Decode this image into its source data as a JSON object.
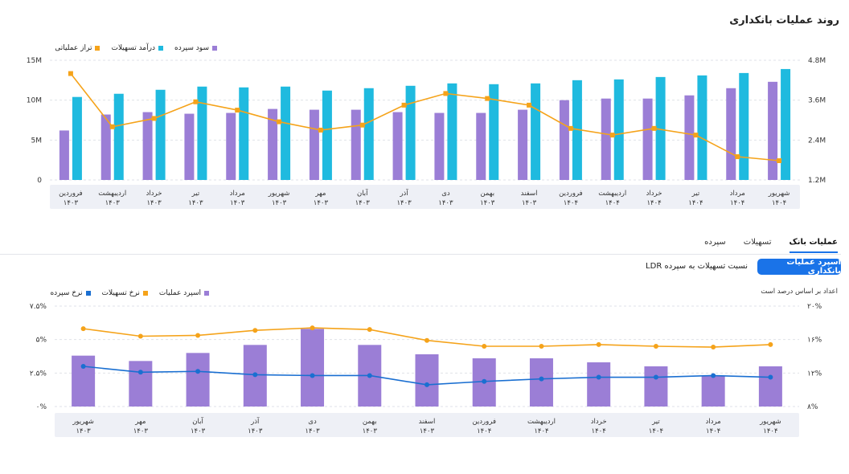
{
  "page": {
    "title": "روند عملیات بانکداری",
    "tabs": [
      "عملیات بانک",
      "تسهیلات",
      "سپرده"
    ],
    "spread_button": "اسپرد عملیات بانکداری",
    "ratio_link": "نسبت تسهیلات به سپرده LDR",
    "note": "اعداد بر اساس درصد است"
  },
  "chart_data": [
    {
      "type": "bar",
      "legend": [
        {
          "name": "سود سپرده",
          "color": "#9b7ed6"
        },
        {
          "name": "درآمد تسهیلات",
          "color": "#1fbadf"
        },
        {
          "name": "تراز عملیاتی",
          "color": "#f5a31a"
        }
      ],
      "categories": [
        [
          "فروردین",
          "۱۴۰۳"
        ],
        [
          "اردیبهشت",
          "۱۴۰۳"
        ],
        [
          "خرداد",
          "۱۴۰۳"
        ],
        [
          "تیر",
          "۱۴۰۳"
        ],
        [
          "مرداد",
          "۱۴۰۳"
        ],
        [
          "شهریور",
          "۱۴۰۳"
        ],
        [
          "مهر",
          "۱۴۰۳"
        ],
        [
          "آبان",
          "۱۴۰۳"
        ],
        [
          "آذر",
          "۱۴۰۳"
        ],
        [
          "دی",
          "۱۴۰۳"
        ],
        [
          "بهمن",
          "۱۴۰۳"
        ],
        [
          "اسفند",
          "۱۴۰۳"
        ],
        [
          "فروردین",
          "۱۴۰۴"
        ],
        [
          "اردیبهشت",
          "۱۴۰۴"
        ],
        [
          "خرداد",
          "۱۴۰۴"
        ],
        [
          "تیر",
          "۱۴۰۴"
        ],
        [
          "مرداد",
          "۱۴۰۴"
        ],
        [
          "شهریور",
          "۱۴۰۴"
        ]
      ],
      "left_axis": {
        "ticks": [
          "15M",
          "10M",
          "5M",
          "0"
        ],
        "values": [
          15,
          10,
          5,
          0
        ],
        "ylim": [
          0,
          15
        ]
      },
      "right_axis": {
        "ticks": [
          "4.8M",
          "3.6M",
          "2.4M",
          "1.2M"
        ],
        "values": [
          4.8,
          3.6,
          2.4,
          1.2
        ],
        "ylim": [
          1.2,
          4.8
        ]
      },
      "series": [
        {
          "name": "سود سپرده",
          "axis": "left",
          "values": [
            6.2,
            8.2,
            8.5,
            8.3,
            8.4,
            8.9,
            8.8,
            8.8,
            8.5,
            8.4,
            8.4,
            8.8,
            10,
            10.2,
            10.2,
            10.6,
            11.5,
            12.3
          ]
        },
        {
          "name": "درآمد تسهیلات",
          "axis": "left",
          "values": [
            10.4,
            10.8,
            11.3,
            11.7,
            11.6,
            11.7,
            11.2,
            11.5,
            11.8,
            12.1,
            12.0,
            12.1,
            12.5,
            12.6,
            12.9,
            13.1,
            13.4,
            13.9
          ]
        },
        {
          "name": "تراز عملیاتی",
          "axis": "right",
          "values": [
            4.4,
            2.8,
            3.05,
            3.55,
            3.3,
            2.95,
            2.7,
            2.85,
            3.45,
            3.8,
            3.65,
            3.45,
            2.75,
            2.55,
            2.75,
            2.55,
            1.9,
            1.78
          ]
        }
      ]
    },
    {
      "type": "bar",
      "legend": [
        {
          "name": "اسپرد عملیات",
          "color": "#9b7ed6"
        },
        {
          "name": "نرخ تسهیلات",
          "color": "#f5a31a"
        },
        {
          "name": "نرخ سپرده",
          "color": "#1a6fd1"
        }
      ],
      "categories": [
        [
          "شهریور",
          "۱۴۰۳"
        ],
        [
          "مهر",
          "۱۴۰۳"
        ],
        [
          "آبان",
          "۱۴۰۳"
        ],
        [
          "آذر",
          "۱۴۰۳"
        ],
        [
          "دی",
          "۱۴۰۳"
        ],
        [
          "بهمن",
          "۱۴۰۳"
        ],
        [
          "اسفند",
          "۱۴۰۳"
        ],
        [
          "فروردین",
          "۱۴۰۴"
        ],
        [
          "اردیبهشت",
          "۱۴۰۴"
        ],
        [
          "خرداد",
          "۱۴۰۴"
        ],
        [
          "تیر",
          "۱۴۰۴"
        ],
        [
          "مرداد",
          "۱۴۰۴"
        ],
        [
          "شهریور",
          "۱۴۰۴"
        ]
      ],
      "left_axis": {
        "ticks": [
          "۷.۵%",
          "۵%",
          "۲.۵%",
          "۰%"
        ],
        "values": [
          7.5,
          5,
          2.5,
          0
        ],
        "ylim": [
          0,
          7.5
        ]
      },
      "right_axis": {
        "ticks": [
          "۲۰%",
          "۱۶%",
          "۱۲%",
          "۸%"
        ],
        "values": [
          20,
          16,
          12,
          8
        ],
        "ylim": [
          8,
          20
        ]
      },
      "series": [
        {
          "name": "اسپرد عملیات",
          "axis": "left",
          "values": [
            3.8,
            3.4,
            4.0,
            4.6,
            5.8,
            4.6,
            3.9,
            3.6,
            3.6,
            3.3,
            3.0,
            2.3,
            3.0
          ]
        },
        {
          "name": "نرخ تسهیلات",
          "axis": "right",
          "values": [
            17.3,
            16.4,
            16.5,
            17.1,
            17.4,
            17.2,
            15.9,
            15.2,
            15.2,
            15.4,
            15.2,
            15.1,
            15.4
          ]
        },
        {
          "name": "نرخ سپرده",
          "axis": "right",
          "values": [
            12.8,
            12.1,
            12.2,
            11.8,
            11.7,
            11.7,
            10.6,
            11.0,
            11.3,
            11.5,
            11.5,
            11.7,
            11.5
          ]
        }
      ]
    }
  ]
}
